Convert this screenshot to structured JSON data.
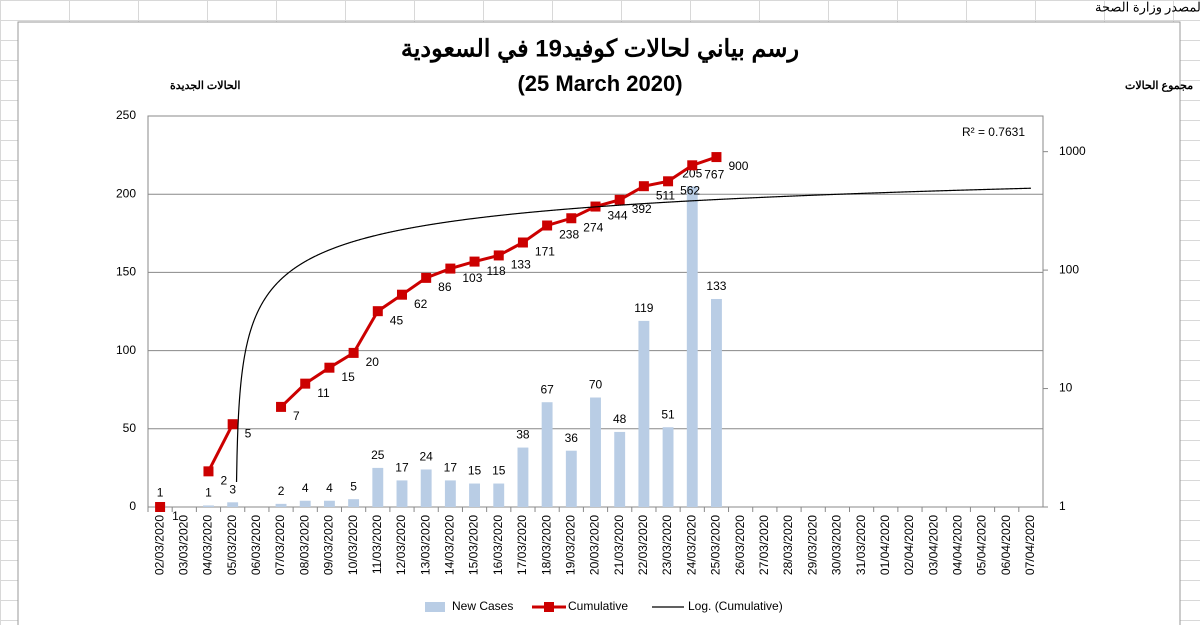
{
  "sheet": {
    "source_label": "المصدر",
    "source": "وزارة الصحة"
  },
  "chart_data": {
    "type": "bar",
    "title": "رسم بياني لحالات كوفيد19 في السعودية",
    "subtitle": "(25 March 2020)",
    "y_label": "الحالات الجديدة",
    "y2_label": "مجموع الحالات",
    "categories": [
      "02/03/2020",
      "03/03/2020",
      "04/03/2020",
      "05/03/2020",
      "06/03/2020",
      "07/03/2020",
      "08/03/2020",
      "09/03/2020",
      "10/03/2020",
      "11/03/2020",
      "12/03/2020",
      "13/03/2020",
      "14/03/2020",
      "15/03/2020",
      "16/03/2020",
      "17/03/2020",
      "18/03/2020",
      "19/03/2020",
      "20/03/2020",
      "21/03/2020",
      "22/03/2020",
      "23/03/2020",
      "24/03/2020",
      "25/03/2020",
      "26/03/2020",
      "27/03/2020",
      "28/03/2020",
      "29/03/2020",
      "30/03/2020",
      "31/03/2020",
      "01/04/2020",
      "02/04/2020",
      "03/04/2020",
      "04/04/2020",
      "05/04/2020",
      "06/04/2020",
      "07/04/2020"
    ],
    "series": [
      {
        "name": "New Cases",
        "type": "bar",
        "color": "#b9cde5",
        "values": [
          1,
          null,
          1,
          3,
          null,
          2,
          4,
          4,
          5,
          25,
          17,
          24,
          17,
          15,
          15,
          38,
          67,
          36,
          70,
          48,
          119,
          51,
          205,
          133,
          null,
          null,
          null,
          null,
          null,
          null,
          null,
          null,
          null,
          null,
          null,
          null,
          null
        ]
      },
      {
        "name": "Cumulative",
        "type": "line",
        "axis": "y2",
        "color": "#cc0000",
        "values": [
          1,
          null,
          2,
          5,
          null,
          7,
          11,
          15,
          20,
          45,
          62,
          86,
          103,
          118,
          133,
          171,
          238,
          274,
          344,
          392,
          511,
          562,
          767,
          900,
          null,
          null,
          null,
          null,
          null,
          null,
          null,
          null,
          null,
          null,
          null,
          null,
          null
        ]
      }
    ],
    "trendline": {
      "name": "Log. (Cumulative)",
      "kind": "logarithmic",
      "of": "Cumulative",
      "color": "#000000",
      "annotation": "R² = 0.7631"
    },
    "ylim": [
      0,
      250
    ],
    "yticks": [
      0,
      50,
      100,
      150,
      200,
      250
    ],
    "y2lim": [
      1,
      2000
    ],
    "y2ticks": [
      1,
      10,
      100,
      1000
    ],
    "y2log": true,
    "grid": true,
    "legend": "bottom"
  }
}
